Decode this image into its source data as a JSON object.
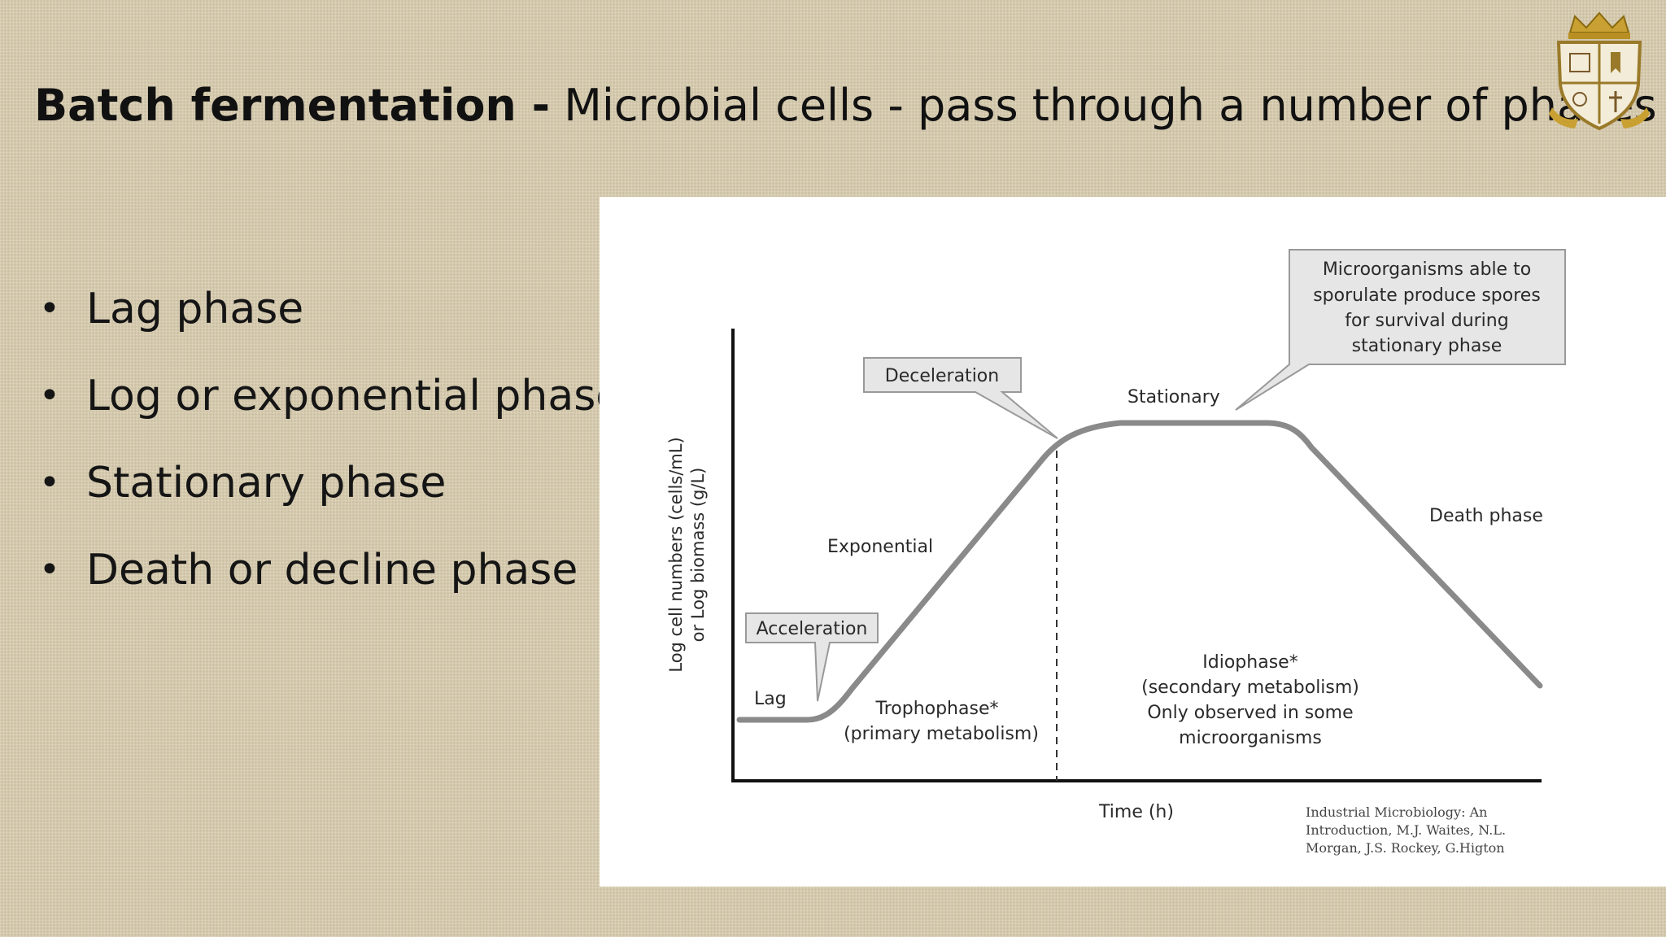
{
  "slide": {
    "title_bold": "Batch fermentation -",
    "title_rest": "Microbial cells - pass through a number of phases",
    "bullets": [
      "Lag phase",
      "Log or exponential phase",
      "Stationary phase",
      "Death or decline phase"
    ]
  },
  "diagram": {
    "y_axis_line1": "Log cell numbers (cells/mL)",
    "y_axis_line2": "or Log biomass (g/L)",
    "x_axis": "Time (h)",
    "labels": {
      "lag": "Lag",
      "exponential": "Exponential",
      "stationary": "Stationary",
      "death": "Death phase"
    },
    "callouts": {
      "acceleration": "Acceleration",
      "deceleration": "Deceleration",
      "sporulate": [
        "Microorganisms able to",
        "sporulate produce spores",
        "for survival during",
        "stationary phase"
      ]
    },
    "regions": {
      "trophophase": [
        "Trophophase*",
        "(primary metabolism)"
      ],
      "idiophase": [
        "Idiophase*",
        "(secondary metabolism)",
        "Only observed in some",
        "microorganisms"
      ]
    },
    "citation": [
      "Industrial Microbiology: An",
      "Introduction, M.J. Waites, N.L.",
      "Morgan, J.S. Rockey, G.Higton"
    ]
  },
  "colors": {
    "background": "#d8ccae",
    "curve": "#8a8a8a",
    "callout_fill": "#e6e6e6"
  }
}
